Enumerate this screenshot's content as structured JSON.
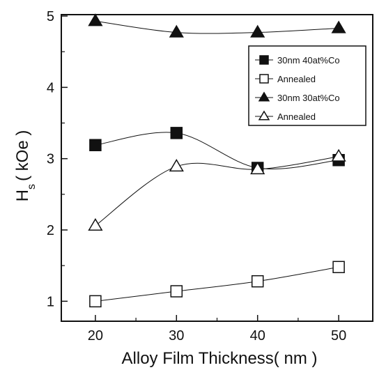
{
  "chart_data": {
    "type": "line",
    "xlabel": "Alloy Film Thickness( nm )",
    "ylabel_main": "H",
    "ylabel_sub": "s",
    "ylabel_unit": "( kOe )",
    "xlim": [
      15.8,
      54.2
    ],
    "ylim": [
      0.72,
      5.02
    ],
    "xticks": [
      20,
      30,
      40,
      50
    ],
    "yticks": [
      1,
      2,
      3,
      4,
      5
    ],
    "x": [
      20,
      30,
      40,
      50
    ],
    "series": [
      {
        "name": "30nm 40at%Co",
        "marker": "square-filled",
        "values": [
          3.19,
          3.36,
          2.87,
          2.98
        ]
      },
      {
        "name": "Annealed",
        "marker": "square-open",
        "values": [
          1.0,
          1.14,
          1.28,
          1.48
        ]
      },
      {
        "name": "30nm 30at%Co",
        "marker": "triangle-filled",
        "values": [
          4.93,
          4.77,
          4.77,
          4.83
        ]
      },
      {
        "name": "Annealed",
        "marker": "triangle-open",
        "values": [
          2.06,
          2.89,
          2.85,
          3.03
        ]
      }
    ],
    "legend": "top-right",
    "grid": false
  }
}
